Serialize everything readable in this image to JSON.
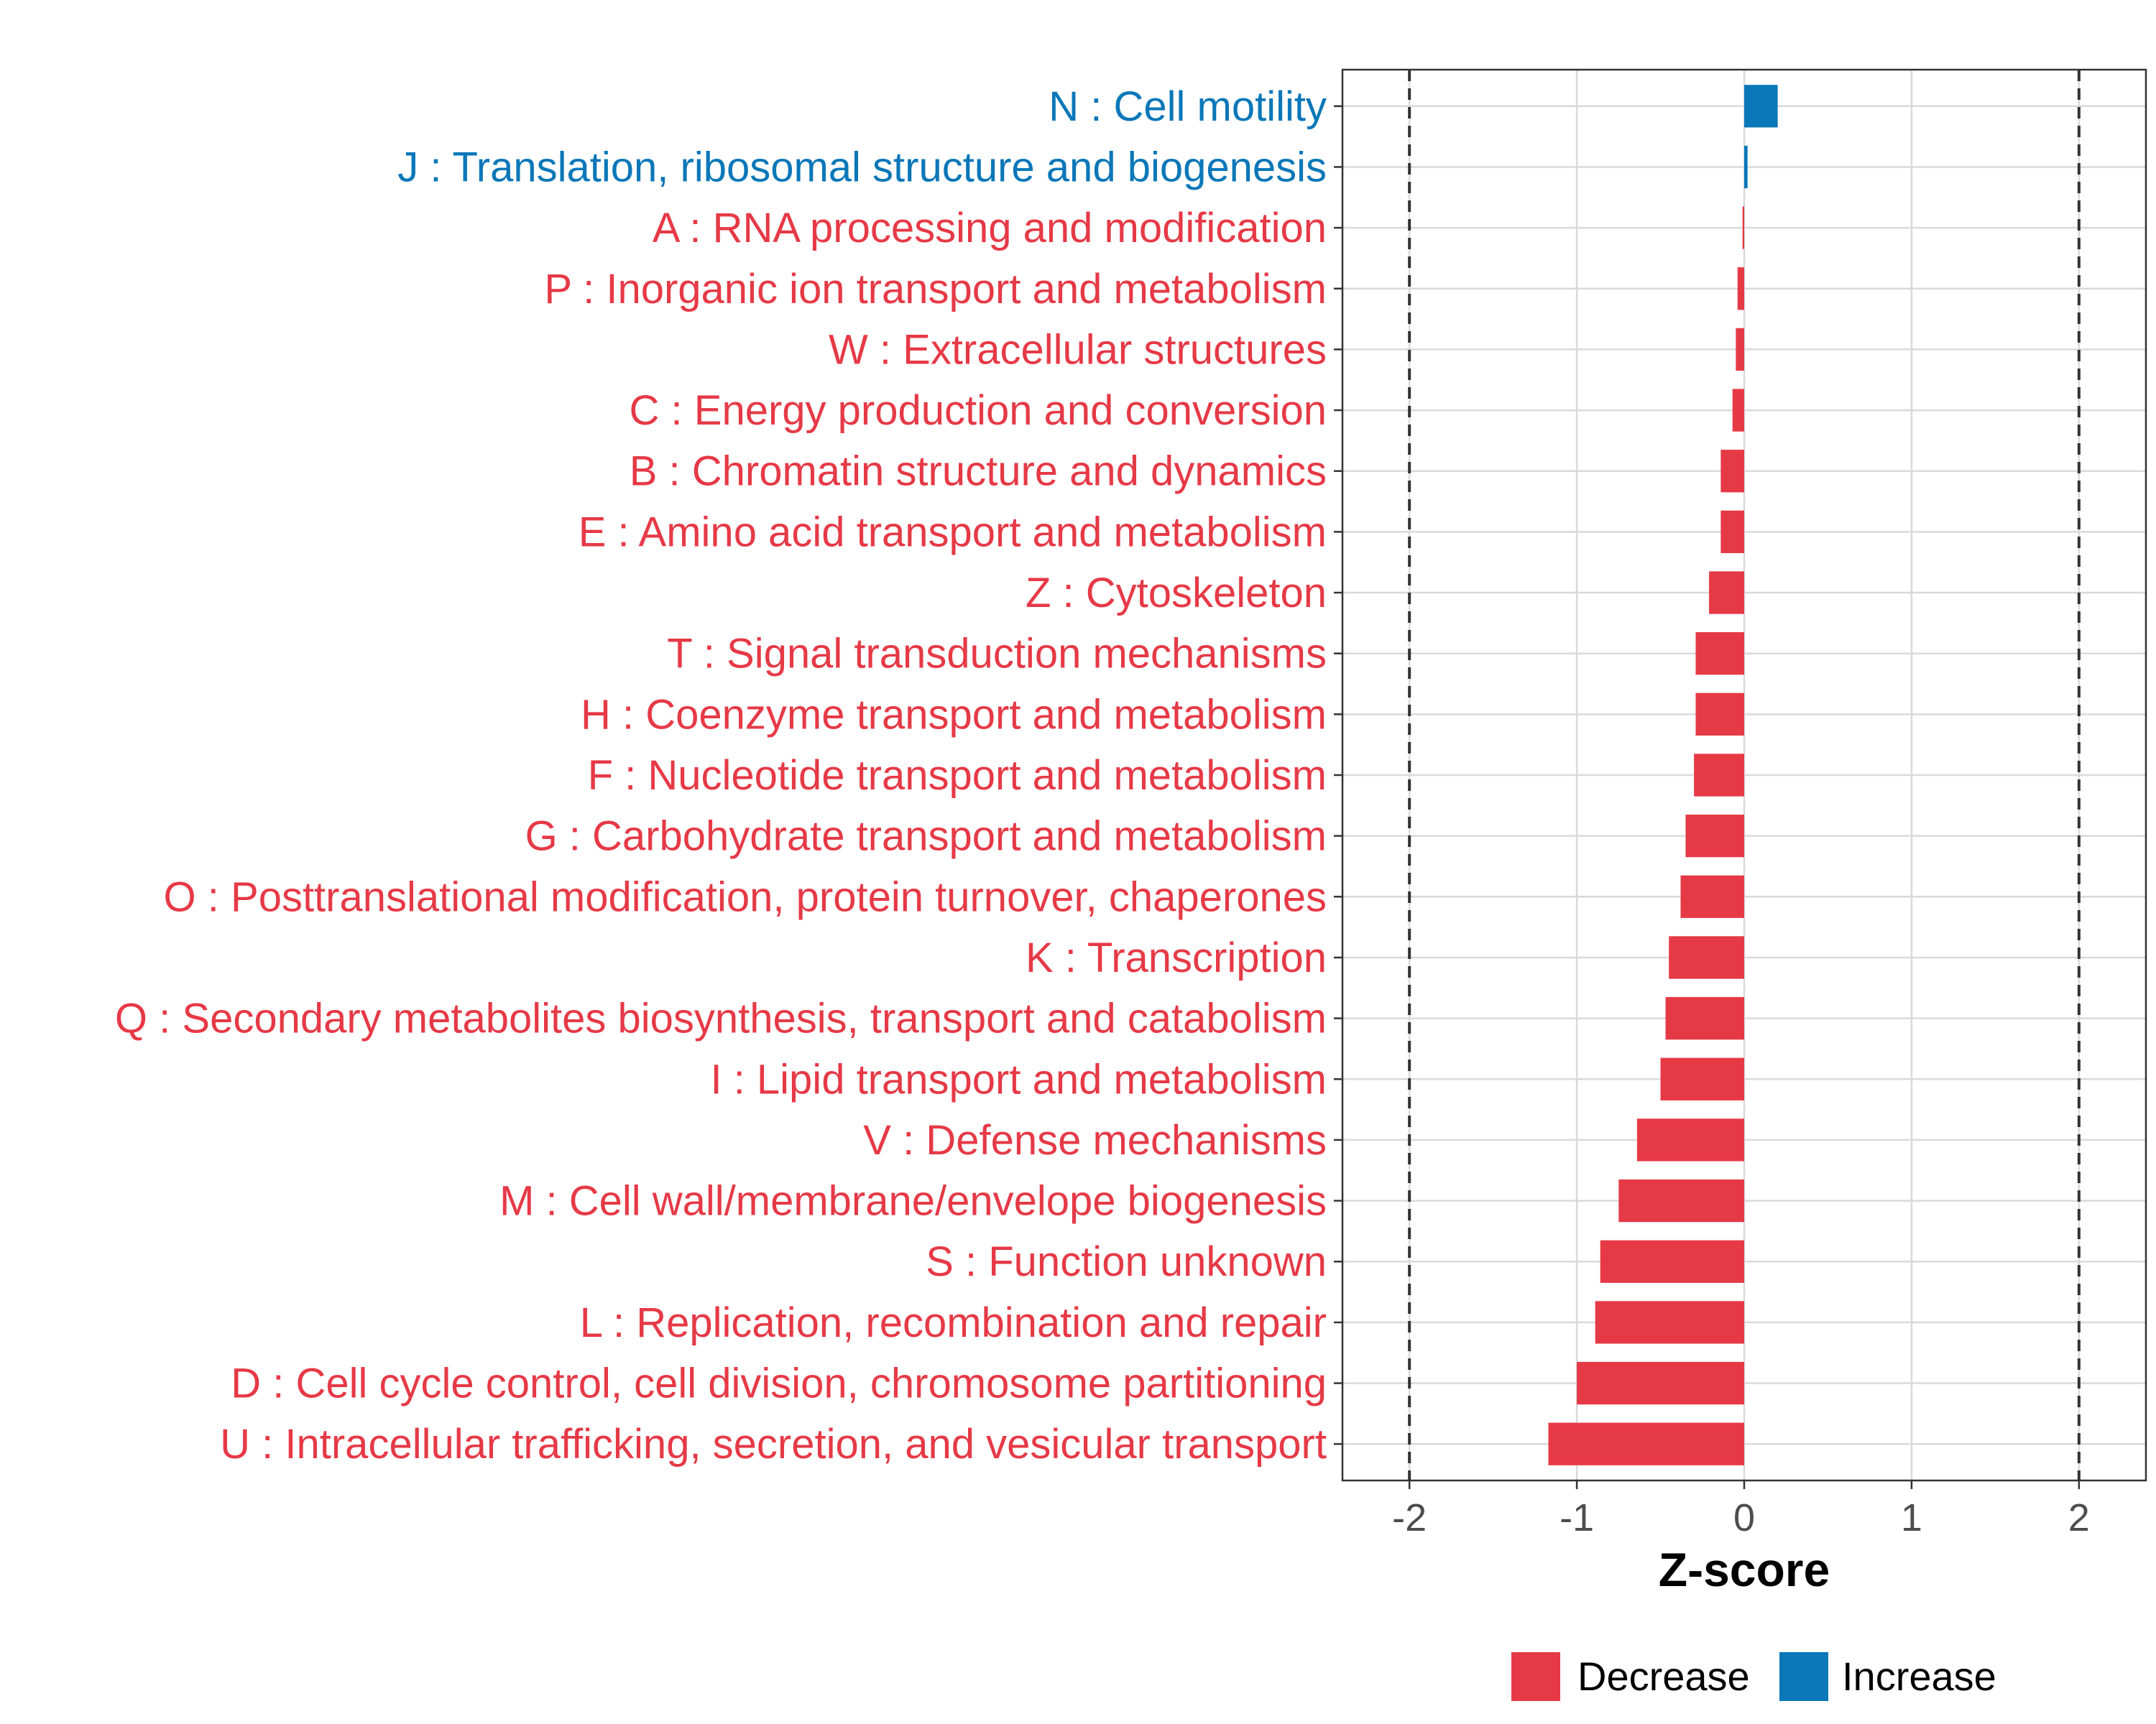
{
  "chart_data": {
    "type": "bar",
    "orientation": "horizontal",
    "xlabel": "Z-score",
    "xlim": [
      -2.4,
      2.4
    ],
    "xticks": [
      -2,
      -1,
      0,
      1,
      2
    ],
    "xtick_labels": [
      "-2",
      "-1",
      "0",
      "1",
      "2"
    ],
    "reference_lines": [
      -2,
      2
    ],
    "grid": true,
    "categories": [
      "N : Cell motility",
      "J : Translation, ribosomal structure and biogenesis",
      "A : RNA processing and modification",
      "P : Inorganic ion transport and metabolism",
      "W : Extracellular structures",
      "C : Energy production and conversion",
      "B : Chromatin structure and dynamics",
      "E : Amino acid transport and metabolism",
      "Z : Cytoskeleton",
      "T : Signal transduction mechanisms",
      "H : Coenzyme transport and metabolism",
      "F : Nucleotide transport and metabolism",
      "G : Carbohydrate transport and metabolism",
      "O : Posttranslational modification, protein turnover, chaperones",
      "K : Transcription",
      "Q : Secondary metabolites biosynthesis, transport and catabolism",
      "I : Lipid transport and metabolism",
      "V : Defense mechanisms",
      "M : Cell wall/membrane/envelope biogenesis",
      "S : Function unknown",
      "L : Replication, recombination and repair",
      "D : Cell cycle control, cell division, chromosome partitioning",
      "U : Intracellular trafficking, secretion, and vesicular transport"
    ],
    "values": [
      0.2,
      0.02,
      -0.01,
      -0.04,
      -0.05,
      -0.07,
      -0.14,
      -0.14,
      -0.21,
      -0.29,
      -0.29,
      -0.3,
      -0.35,
      -0.38,
      -0.45,
      -0.47,
      -0.5,
      -0.64,
      -0.75,
      -0.86,
      -0.89,
      -1.0,
      -1.17
    ],
    "groups": [
      "Increase",
      "Increase",
      "Decrease",
      "Decrease",
      "Decrease",
      "Decrease",
      "Decrease",
      "Decrease",
      "Decrease",
      "Decrease",
      "Decrease",
      "Decrease",
      "Decrease",
      "Decrease",
      "Decrease",
      "Decrease",
      "Decrease",
      "Decrease",
      "Decrease",
      "Decrease",
      "Decrease",
      "Decrease",
      "Decrease"
    ],
    "legend": {
      "placement": "bottom",
      "entries": [
        {
          "name": "Decrease",
          "color": "#E63946"
        },
        {
          "name": "Increase",
          "color": "#0A77B8"
        }
      ]
    }
  }
}
